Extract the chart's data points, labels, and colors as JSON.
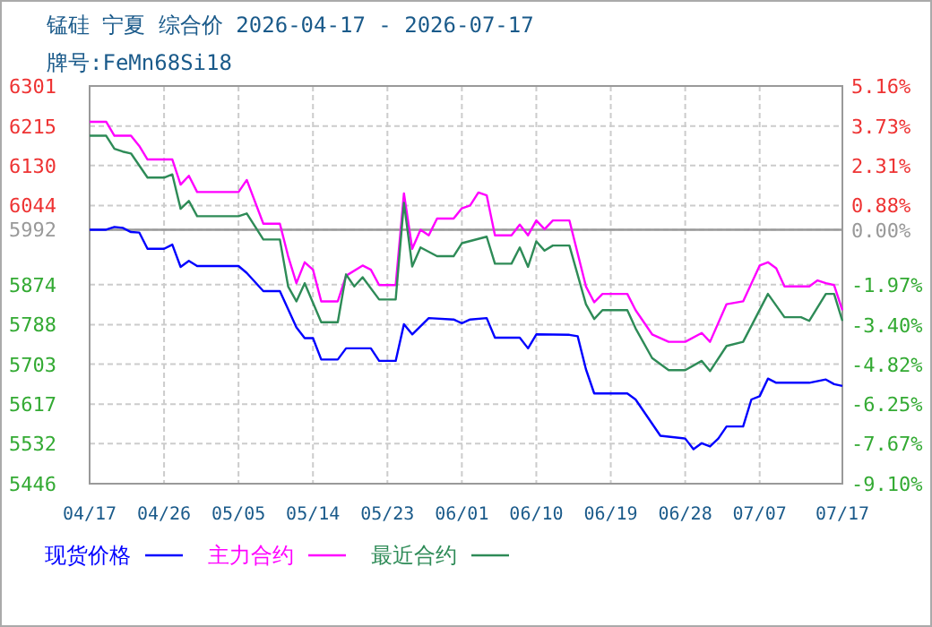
{
  "chart_data": {
    "type": "line",
    "title": "锰硅 宁夏 综合价 2026-04-17 - 2026-07-17",
    "subtitle": "牌号:FeMn68Si18",
    "xlim": [
      "2026-04-17",
      "2026-07-17"
    ],
    "xticks": [
      {
        "value": "2026-04-17",
        "label": "04/17"
      },
      {
        "value": "2026-04-26",
        "label": "04/26"
      },
      {
        "value": "2026-05-05",
        "label": "05/05"
      },
      {
        "value": "2026-05-14",
        "label": "05/14"
      },
      {
        "value": "2026-05-23",
        "label": "05/23"
      },
      {
        "value": "2026-06-01",
        "label": "06/01"
      },
      {
        "value": "2026-06-10",
        "label": "06/10"
      },
      {
        "value": "2026-06-19",
        "label": "06/19"
      },
      {
        "value": "2026-06-28",
        "label": "06/28"
      },
      {
        "value": "2026-07-07",
        "label": "07/07"
      },
      {
        "value": "2026-07-17",
        "label": "07/17"
      }
    ],
    "ylim": [
      5446,
      6301
    ],
    "yticks": [
      5446,
      5532,
      5617,
      5703,
      5788,
      5874,
      5992,
      6044,
      6130,
      6215,
      6301
    ],
    "y2lim": [
      -9.1,
      5.16
    ],
    "y2ticks": [
      {
        "value": -9.1,
        "label": "-9.10%"
      },
      {
        "value": -7.67,
        "label": "-7.67%"
      },
      {
        "value": -6.25,
        "label": "-6.25%"
      },
      {
        "value": -4.82,
        "label": "-4.82%"
      },
      {
        "value": -3.4,
        "label": "-3.40%"
      },
      {
        "value": -1.97,
        "label": "-1.97%"
      },
      {
        "value": 0.0,
        "label": "0.00%"
      },
      {
        "value": 0.88,
        "label": "0.88%"
      },
      {
        "value": 2.31,
        "label": "2.31%"
      },
      {
        "value": 3.73,
        "label": "3.73%"
      },
      {
        "value": 5.16,
        "label": "5.16%"
      }
    ],
    "ref_lines": [
      {
        "axis": "y",
        "value": 5992,
        "color": "#999999"
      }
    ],
    "grid": true,
    "legend": "bottom",
    "line_style": "solid",
    "marker": "none",
    "series": [
      {
        "name": "现货价格",
        "color": "#0000ff",
        "x": [
          "2026-04-17",
          "2026-04-19",
          "2026-04-20",
          "2026-04-21",
          "2026-04-22",
          "2026-04-23",
          "2026-04-24",
          "2026-04-26",
          "2026-04-27",
          "2026-04-28",
          "2026-04-29",
          "2026-04-30",
          "2026-05-05",
          "2026-05-06",
          "2026-05-08",
          "2026-05-10",
          "2026-05-11",
          "2026-05-12",
          "2026-05-13",
          "2026-05-14",
          "2026-05-15",
          "2026-05-17",
          "2026-05-18",
          "2026-05-21",
          "2026-05-22",
          "2026-05-24",
          "2026-05-25",
          "2026-05-26",
          "2026-05-28",
          "2026-05-31",
          "2026-06-01",
          "2026-06-02",
          "2026-06-04",
          "2026-06-05",
          "2026-06-08",
          "2026-06-09",
          "2026-06-10",
          "2026-06-14",
          "2026-06-15",
          "2026-06-16",
          "2026-06-17",
          "2026-06-21",
          "2026-06-22",
          "2026-06-25",
          "2026-06-28",
          "2026-06-29",
          "2026-06-30",
          "2026-07-01",
          "2026-07-02",
          "2026-07-03",
          "2026-07-05",
          "2026-07-06",
          "2026-07-07",
          "2026-07-08",
          "2026-07-09",
          "2026-07-13",
          "2026-07-15",
          "2026-07-16",
          "2026-07-17"
        ],
        "values": [
          5992,
          5992,
          5998,
          5996,
          5987,
          5986,
          5951,
          5951,
          5960,
          5912,
          5925,
          5914,
          5914,
          5899,
          5860,
          5860,
          5821,
          5782,
          5759,
          5759,
          5713,
          5713,
          5737,
          5737,
          5710,
          5710,
          5789,
          5767,
          5802,
          5799,
          5791,
          5799,
          5802,
          5760,
          5760,
          5737,
          5767,
          5766,
          5763,
          5692,
          5640,
          5640,
          5627,
          5549,
          5543,
          5520,
          5533,
          5526,
          5543,
          5569,
          5569,
          5627,
          5634,
          5672,
          5663,
          5663,
          5670,
          5660,
          5656
        ]
      },
      {
        "name": "主力合约",
        "color": "#ff00ff",
        "x": [
          "2026-04-17",
          "2026-04-19",
          "2026-04-20",
          "2026-04-22",
          "2026-04-23",
          "2026-04-24",
          "2026-04-27",
          "2026-04-28",
          "2026-04-29",
          "2026-04-30",
          "2026-05-05",
          "2026-05-06",
          "2026-05-08",
          "2026-05-10",
          "2026-05-11",
          "2026-05-12",
          "2026-05-13",
          "2026-05-14",
          "2026-05-15",
          "2026-05-17",
          "2026-05-18",
          "2026-05-20",
          "2026-05-21",
          "2026-05-22",
          "2026-05-24",
          "2026-05-25",
          "2026-05-26",
          "2026-05-27",
          "2026-05-28",
          "2026-05-29",
          "2026-05-31",
          "2026-06-01",
          "2026-06-02",
          "2026-06-03",
          "2026-06-04",
          "2026-06-05",
          "2026-06-07",
          "2026-06-08",
          "2026-06-09",
          "2026-06-10",
          "2026-06-11",
          "2026-06-12",
          "2026-06-14",
          "2026-06-16",
          "2026-06-17",
          "2026-06-18",
          "2026-06-21",
          "2026-06-22",
          "2026-06-24",
          "2026-06-26",
          "2026-06-28",
          "2026-06-30",
          "2026-07-01",
          "2026-07-03",
          "2026-07-05",
          "2026-07-07",
          "2026-07-08",
          "2026-07-09",
          "2026-07-10",
          "2026-07-13",
          "2026-07-14",
          "2026-07-15",
          "2026-07-16",
          "2026-07-17"
        ],
        "values": [
          6224,
          6224,
          6194,
          6194,
          6172,
          6143,
          6143,
          6089,
          6108,
          6073,
          6073,
          6099,
          6005,
          6005,
          5935,
          5877,
          5922,
          5906,
          5838,
          5838,
          5893,
          5915,
          5906,
          5873,
          5873,
          6070,
          5951,
          5992,
          5980,
          6016,
          6016,
          6038,
          6044,
          6072,
          6066,
          5980,
          5980,
          6003,
          5980,
          6012,
          5993,
          6012,
          6012,
          5870,
          5836,
          5854,
          5854,
          5819,
          5767,
          5751,
          5751,
          5770,
          5751,
          5832,
          5838,
          5915,
          5922,
          5909,
          5870,
          5870,
          5883,
          5877,
          5873,
          5819
        ]
      },
      {
        "name": "最近合约",
        "color": "#2e8b57",
        "x": [
          "2026-04-17",
          "2026-04-19",
          "2026-04-20",
          "2026-04-21",
          "2026-04-22",
          "2026-04-24",
          "2026-04-26",
          "2026-04-27",
          "2026-04-28",
          "2026-04-29",
          "2026-04-30",
          "2026-05-05",
          "2026-05-06",
          "2026-05-08",
          "2026-05-10",
          "2026-05-11",
          "2026-05-12",
          "2026-05-13",
          "2026-05-15",
          "2026-05-17",
          "2026-05-18",
          "2026-05-19",
          "2026-05-20",
          "2026-05-22",
          "2026-05-24",
          "2026-05-25",
          "2026-05-26",
          "2026-05-27",
          "2026-05-29",
          "2026-05-31",
          "2026-06-01",
          "2026-06-04",
          "2026-06-05",
          "2026-06-07",
          "2026-06-08",
          "2026-06-09",
          "2026-06-10",
          "2026-06-11",
          "2026-06-12",
          "2026-06-14",
          "2026-06-16",
          "2026-06-17",
          "2026-06-18",
          "2026-06-21",
          "2026-06-22",
          "2026-06-24",
          "2026-06-26",
          "2026-06-28",
          "2026-06-30",
          "2026-07-01",
          "2026-07-03",
          "2026-07-05",
          "2026-07-08",
          "2026-07-10",
          "2026-07-12",
          "2026-07-13",
          "2026-07-15",
          "2026-07-16",
          "2026-07-17"
        ],
        "values": [
          6194,
          6194,
          6166,
          6160,
          6156,
          6104,
          6104,
          6111,
          6037,
          6054,
          6021,
          6021,
          6027,
          5971,
          5971,
          5870,
          5838,
          5877,
          5793,
          5793,
          5896,
          5870,
          5890,
          5842,
          5842,
          6050,
          5913,
          5954,
          5935,
          5935,
          5963,
          5977,
          5919,
          5919,
          5954,
          5912,
          5967,
          5947,
          5958,
          5958,
          5832,
          5800,
          5819,
          5819,
          5780,
          5716,
          5690,
          5690,
          5710,
          5688,
          5742,
          5751,
          5854,
          5804,
          5804,
          5796,
          5854,
          5854,
          5796
        ]
      }
    ]
  }
}
